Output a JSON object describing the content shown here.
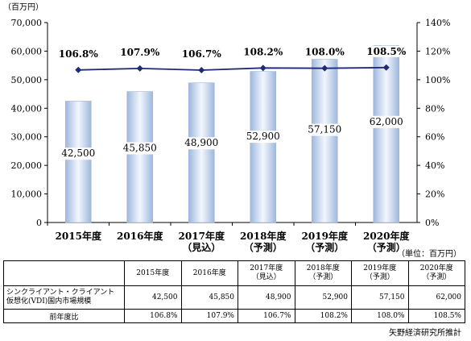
{
  "chart_data": {
    "type": "bar",
    "categories": [
      "2015年度",
      "2016年度",
      "2017年度\n（見込）",
      "2018年度\n（予測）",
      "2019年度\n（予測）",
      "2020年度\n（予測）"
    ],
    "left_axis_unit": "（百万円）",
    "ylim": [
      0,
      70000
    ],
    "yticks": [
      "0",
      "10,000",
      "20,000",
      "30,000",
      "40,000",
      "50,000",
      "60,000",
      "70,000"
    ],
    "y2lim": [
      0,
      140
    ],
    "y2ticks": [
      "0%",
      "20%",
      "40%",
      "60%",
      "80%",
      "100%",
      "120%",
      "140%"
    ],
    "series": [
      {
        "type": "bar",
        "values": [
          42500,
          45850,
          48900,
          52900,
          57150,
          62000
        ],
        "labels": [
          "42,500",
          "45,850",
          "48,900",
          "52,900",
          "57,150",
          "62,000"
        ]
      },
      {
        "type": "line",
        "axis": "right",
        "values": [
          106.8,
          107.9,
          106.7,
          108.2,
          108.0,
          108.5
        ],
        "labels": [
          "106.8%",
          "107.9%",
          "106.7%",
          "108.2%",
          "108.0%",
          "108.5%"
        ]
      }
    ],
    "grid": false,
    "colors": {
      "bar": "#c6d5ec",
      "bar_edge": "#9fb6dc",
      "line": "#1f2a78"
    }
  },
  "unit_note": "（単位：百万円）",
  "table": {
    "headers": [
      "2015年度",
      "2016年度",
      "2017年度\n（見込）",
      "2018年度\n（予測）",
      "2019年度\n（予測）",
      "2020年度\n（予測）"
    ],
    "row1_label": "シンクライアント・クライアント\n仮想化(VDI)国内市場規模",
    "row1": [
      "42,500",
      "45,850",
      "48,900",
      "52,900",
      "57,150",
      "62,000"
    ],
    "row2_label": "前年度比",
    "row2": [
      "106.8%",
      "107.9%",
      "106.7%",
      "108.2%",
      "108.0%",
      "108.5%"
    ]
  },
  "source": "矢野経済研究所推計"
}
